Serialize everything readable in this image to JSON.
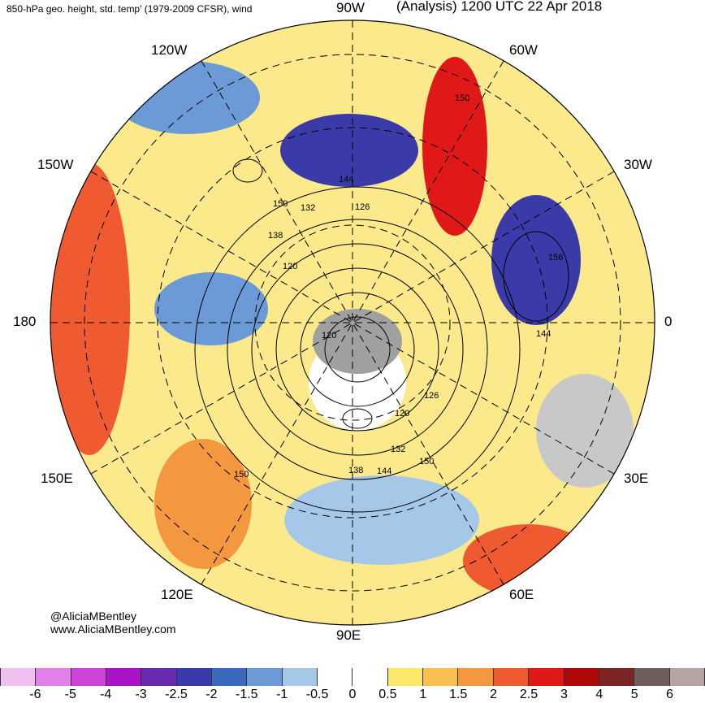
{
  "header": {
    "title_left": "850-hPa geo. height, std. temp' (1979-2009 CFSR), wind",
    "title_right": "(Analysis) 1200 UTC 22 Apr 2018"
  },
  "longitude_labels": {
    "w90": "90W",
    "w60": "60W",
    "w30": "30W",
    "lon0": "0",
    "e30": "30E",
    "e60": "60E",
    "e90": "90E",
    "e120": "120E",
    "e150": "150E",
    "lon180": "180",
    "w150": "150W",
    "w120": "120W"
  },
  "contour_labels": [
    "150",
    "144",
    "132",
    "126",
    "138",
    "120",
    "156",
    "144",
    "126",
    "120",
    "132",
    "138",
    "144",
    "150",
    "150",
    "120",
    "150"
  ],
  "credits": {
    "handle": "@AliciaMBentley",
    "site": "www.AliciaMBentley.com"
  },
  "colorbar": {
    "colors": [
      "#f0c0f0",
      "#e080e8",
      "#cc44d8",
      "#a814c8",
      "#6a2ab0",
      "#3a3aa8",
      "#3a6ac0",
      "#6b9ad6",
      "#a6c8e8",
      "#ffffff",
      "#ffffff",
      "#fce868",
      "#f8c050",
      "#f49840",
      "#f05a30",
      "#e01818",
      "#b00808",
      "#7a2424",
      "#6e5e5e",
      "#b4a4a4"
    ],
    "labels": [
      "-6",
      "-5",
      "-4",
      "-3",
      "-2.5",
      "-2",
      "-1.5",
      "-1",
      "-0.5",
      "0",
      "0.5",
      "1",
      "1.5",
      "2",
      "2.5",
      "3",
      "4",
      "5",
      "6"
    ]
  }
}
